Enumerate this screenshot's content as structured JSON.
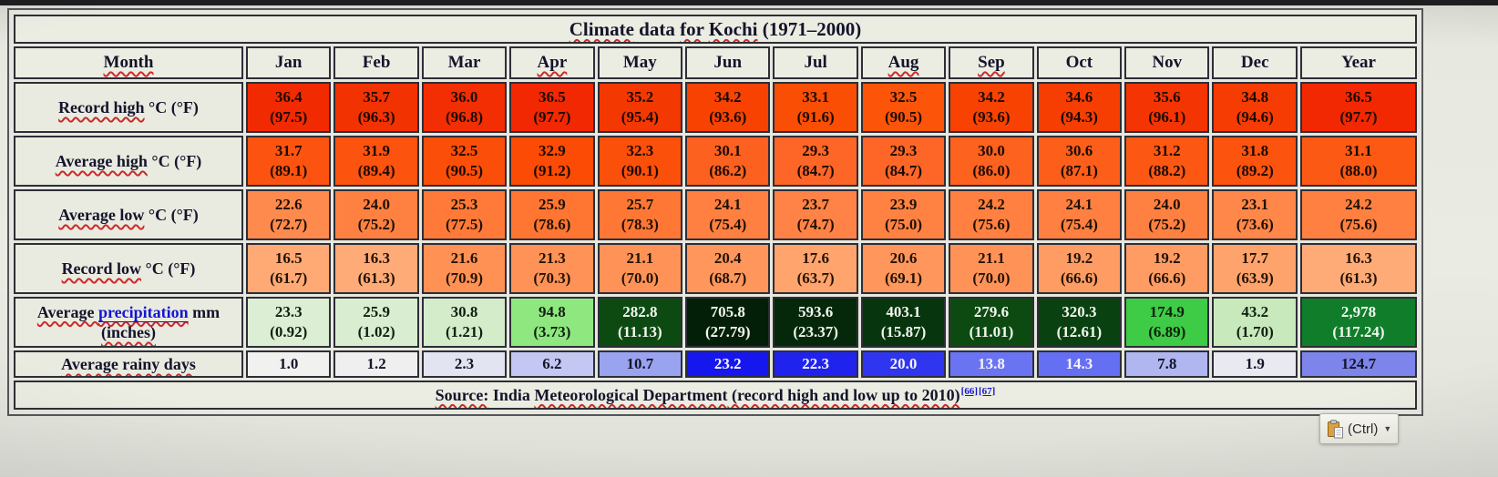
{
  "title_parts": [
    {
      "text": "Climate",
      "squiggle": true
    },
    {
      "text": " data "
    },
    {
      "text": "for",
      "squiggle": true
    },
    {
      "text": " "
    },
    {
      "text": "Kochi",
      "squiggle": true
    },
    {
      "text": " (1971–2000)"
    }
  ],
  "columns": [
    {
      "text": "Month",
      "squiggle": true
    },
    {
      "text": "Jan"
    },
    {
      "text": "Feb"
    },
    {
      "text": "Mar"
    },
    {
      "text": "Apr",
      "squiggle": true
    },
    {
      "text": "May"
    },
    {
      "text": "Jun"
    },
    {
      "text": "Jul"
    },
    {
      "text": "Aug",
      "squiggle": true
    },
    {
      "text": "Sep",
      "squiggle": true
    },
    {
      "text": "Oct"
    },
    {
      "text": "Nov"
    },
    {
      "text": "Dec"
    },
    {
      "text": "Year"
    }
  ],
  "rows": [
    {
      "name": "record-high",
      "tall": true,
      "label_parts": [
        {
          "text": "Record high",
          "squiggle": true
        },
        {
          "text": " °C (°F)"
        }
      ],
      "cells": [
        {
          "l1": "36.4",
          "l2": "(97.5)",
          "bg": "#f12a02",
          "fg": "#1c0a02"
        },
        {
          "l1": "35.7",
          "l2": "(96.3)",
          "bg": "#f33202",
          "fg": "#1c0a02"
        },
        {
          "l1": "36.0",
          "l2": "(96.8)",
          "bg": "#f22e02",
          "fg": "#1c0a02"
        },
        {
          "l1": "36.5",
          "l2": "(97.7)",
          "bg": "#f12802",
          "fg": "#1c0a02"
        },
        {
          "l1": "35.2",
          "l2": "(95.4)",
          "bg": "#f43802",
          "fg": "#1c0a02"
        },
        {
          "l1": "34.2",
          "l2": "(93.6)",
          "bg": "#f74202",
          "fg": "#1c0a02"
        },
        {
          "l1": "33.1",
          "l2": "(91.6)",
          "bg": "#fa4e04",
          "fg": "#1c0a02"
        },
        {
          "l1": "32.5",
          "l2": "(90.5)",
          "bg": "#fc5408",
          "fg": "#1c0a02"
        },
        {
          "l1": "34.2",
          "l2": "(93.6)",
          "bg": "#f74202",
          "fg": "#1c0a02"
        },
        {
          "l1": "34.6",
          "l2": "(94.3)",
          "bg": "#f63e02",
          "fg": "#1c0a02"
        },
        {
          "l1": "35.6",
          "l2": "(96.1)",
          "bg": "#f43402",
          "fg": "#1c0a02"
        },
        {
          "l1": "34.8",
          "l2": "(94.6)",
          "bg": "#f63c02",
          "fg": "#1c0a02"
        },
        {
          "l1": "36.5",
          "l2": "(97.7)",
          "bg": "#f12802",
          "fg": "#1c0a02"
        }
      ]
    },
    {
      "name": "average-high",
      "tall": true,
      "label_parts": [
        {
          "text": "Average high",
          "squiggle": true
        },
        {
          "text": " °C (°F)"
        }
      ],
      "cells": [
        {
          "l1": "31.7",
          "l2": "(89.1)",
          "bg": "#fc5410",
          "fg": "#1c0a02"
        },
        {
          "l1": "31.9",
          "l2": "(89.4)",
          "bg": "#fc530f",
          "fg": "#1c0a02"
        },
        {
          "l1": "32.5",
          "l2": "(90.5)",
          "bg": "#fb4e08",
          "fg": "#1c0a02"
        },
        {
          "l1": "32.9",
          "l2": "(91.2)",
          "bg": "#fb4b04",
          "fg": "#1c0a02"
        },
        {
          "l1": "32.3",
          "l2": "(90.1)",
          "bg": "#fb500a",
          "fg": "#1c0a02"
        },
        {
          "l1": "30.1",
          "l2": "(86.2)",
          "bg": "#fd6120",
          "fg": "#1c0a02"
        },
        {
          "l1": "29.3",
          "l2": "(84.7)",
          "bg": "#fe6628",
          "fg": "#1c0a02"
        },
        {
          "l1": "29.3",
          "l2": "(84.7)",
          "bg": "#fe6628",
          "fg": "#1c0a02"
        },
        {
          "l1": "30.0",
          "l2": "(86.0)",
          "bg": "#fd621f",
          "fg": "#1c0a02"
        },
        {
          "l1": "30.6",
          "l2": "(87.1)",
          "bg": "#fd5e1a",
          "fg": "#1c0a02"
        },
        {
          "l1": "31.2",
          "l2": "(88.2)",
          "bg": "#fc5814",
          "fg": "#1c0a02"
        },
        {
          "l1": "31.8",
          "l2": "(89.2)",
          "bg": "#fc530e",
          "fg": "#1c0a02"
        },
        {
          "l1": "31.1",
          "l2": "(88.0)",
          "bg": "#fc5915",
          "fg": "#1c0a02"
        }
      ]
    },
    {
      "name": "average-low",
      "tall": true,
      "label_parts": [
        {
          "text": "Average low",
          "squiggle": true
        },
        {
          "text": " °C (°F)"
        }
      ],
      "cells": [
        {
          "l1": "22.6",
          "l2": "(72.7)",
          "bg": "#ff8a4e",
          "fg": "#201002"
        },
        {
          "l1": "24.0",
          "l2": "(75.2)",
          "bg": "#ff8142",
          "fg": "#201002"
        },
        {
          "l1": "25.3",
          "l2": "(77.5)",
          "bg": "#ff7a38",
          "fg": "#201002"
        },
        {
          "l1": "25.9",
          "l2": "(78.6)",
          "bg": "#ff7632",
          "fg": "#201002"
        },
        {
          "l1": "25.7",
          "l2": "(78.3)",
          "bg": "#ff7734",
          "fg": "#201002"
        },
        {
          "l1": "24.1",
          "l2": "(75.4)",
          "bg": "#ff8041",
          "fg": "#201002"
        },
        {
          "l1": "23.7",
          "l2": "(74.7)",
          "bg": "#ff8346",
          "fg": "#201002"
        },
        {
          "l1": "23.9",
          "l2": "(75.0)",
          "bg": "#ff8243",
          "fg": "#201002"
        },
        {
          "l1": "24.2",
          "l2": "(75.6)",
          "bg": "#ff8040",
          "fg": "#201002"
        },
        {
          "l1": "24.1",
          "l2": "(75.4)",
          "bg": "#ff8041",
          "fg": "#201002"
        },
        {
          "l1": "24.0",
          "l2": "(75.2)",
          "bg": "#ff8142",
          "fg": "#201002"
        },
        {
          "l1": "23.1",
          "l2": "(73.6)",
          "bg": "#ff874a",
          "fg": "#201002"
        },
        {
          "l1": "24.2",
          "l2": "(75.6)",
          "bg": "#ff8040",
          "fg": "#201002"
        }
      ]
    },
    {
      "name": "record-low",
      "tall": true,
      "label_parts": [
        {
          "text": "Record low",
          "squiggle": true
        },
        {
          "text": " °C (°F)"
        }
      ],
      "cells": [
        {
          "l1": "16.5",
          "l2": "(61.7)",
          "bg": "#ffaa75",
          "fg": "#241204"
        },
        {
          "l1": "16.3",
          "l2": "(61.3)",
          "bg": "#ffab77",
          "fg": "#241204"
        },
        {
          "l1": "21.6",
          "l2": "(70.9)",
          "bg": "#ff9154",
          "fg": "#241204"
        },
        {
          "l1": "21.3",
          "l2": "(70.3)",
          "bg": "#ff9256",
          "fg": "#241204"
        },
        {
          "l1": "21.1",
          "l2": "(70.0)",
          "bg": "#ff9357",
          "fg": "#241204"
        },
        {
          "l1": "20.4",
          "l2": "(68.7)",
          "bg": "#ff975d",
          "fg": "#241204"
        },
        {
          "l1": "17.6",
          "l2": "(63.7)",
          "bg": "#ffa46d",
          "fg": "#241204"
        },
        {
          "l1": "20.6",
          "l2": "(69.1)",
          "bg": "#ff965b",
          "fg": "#241204"
        },
        {
          "l1": "21.1",
          "l2": "(70.0)",
          "bg": "#ff9357",
          "fg": "#241204"
        },
        {
          "l1": "19.2",
          "l2": "(66.6)",
          "bg": "#ff9c64",
          "fg": "#241204"
        },
        {
          "l1": "19.2",
          "l2": "(66.6)",
          "bg": "#ff9c64",
          "fg": "#241204"
        },
        {
          "l1": "17.7",
          "l2": "(63.9)",
          "bg": "#ffa36c",
          "fg": "#241204"
        },
        {
          "l1": "16.3",
          "l2": "(61.3)",
          "bg": "#ffab77",
          "fg": "#241204"
        }
      ]
    },
    {
      "name": "precipitation",
      "tall": true,
      "label_parts": [
        {
          "text": "Average ",
          "squiggle": true
        },
        {
          "text": "precipitation",
          "squiggle": true,
          "link": true
        },
        {
          "text": " mm"
        }
      ],
      "label_line2": {
        "text": "(inches)",
        "squiggle": true
      },
      "cells": [
        {
          "l1": "23.3",
          "l2": "(0.92)",
          "bg": "#dcefd4",
          "fg": "#102010"
        },
        {
          "l1": "25.9",
          "l2": "(1.02)",
          "bg": "#d9eed0",
          "fg": "#102010"
        },
        {
          "l1": "30.8",
          "l2": "(1.21)",
          "bg": "#d5eccb",
          "fg": "#102010"
        },
        {
          "l1": "94.8",
          "l2": "(3.73)",
          "bg": "#8fe87f",
          "fg": "#102010"
        },
        {
          "l1": "282.8",
          "l2": "(11.13)",
          "bg": "#0d4a12",
          "fg": "#f2f6ee"
        },
        {
          "l1": "705.8",
          "l2": "(27.79)",
          "bg": "#041f07",
          "fg": "#f2f6ee"
        },
        {
          "l1": "593.6",
          "l2": "(23.37)",
          "bg": "#05280a",
          "fg": "#f2f6ee"
        },
        {
          "l1": "403.1",
          "l2": "(15.87)",
          "bg": "#07350d",
          "fg": "#f2f6ee"
        },
        {
          "l1": "279.6",
          "l2": "(11.01)",
          "bg": "#0d4a12",
          "fg": "#f2f6ee"
        },
        {
          "l1": "320.3",
          "l2": "(12.61)",
          "bg": "#0a4110",
          "fg": "#f2f6ee"
        },
        {
          "l1": "174.9",
          "l2": "(6.89)",
          "bg": "#3ecb45",
          "fg": "#102010"
        },
        {
          "l1": "43.2",
          "l2": "(1.70)",
          "bg": "#c8e9bc",
          "fg": "#102010"
        },
        {
          "l1": "2,978",
          "l2": "(117.24)",
          "bg": "#0f7d2a",
          "fg": "#f2f6ee"
        }
      ]
    },
    {
      "name": "rainy-days",
      "tall": false,
      "label_parts": [
        {
          "text": "Average rainy days",
          "squiggle": true
        }
      ],
      "cells": [
        {
          "l1": "1.0",
          "bg": "#f1f1ef",
          "fg": "#14142a"
        },
        {
          "l1": "1.2",
          "bg": "#efeff0",
          "fg": "#14142a"
        },
        {
          "l1": "2.3",
          "bg": "#e3e4f2",
          "fg": "#14142a"
        },
        {
          "l1": "6.2",
          "bg": "#c3c7f1",
          "fg": "#14142a"
        },
        {
          "l1": "10.7",
          "bg": "#9aa3ef",
          "fg": "#14142a"
        },
        {
          "l1": "23.2",
          "bg": "#1617ee",
          "fg": "#f4f4fa"
        },
        {
          "l1": "22.3",
          "bg": "#2023ee",
          "fg": "#f4f4fa"
        },
        {
          "l1": "20.0",
          "bg": "#3036ef",
          "fg": "#f4f4fa"
        },
        {
          "l1": "13.8",
          "bg": "#6a74f3",
          "fg": "#f4f4fa"
        },
        {
          "l1": "14.3",
          "bg": "#656ff3",
          "fg": "#f4f4fa"
        },
        {
          "l1": "7.8",
          "bg": "#b0b6f0",
          "fg": "#14142a"
        },
        {
          "l1": "1.9",
          "bg": "#e9e9f2",
          "fg": "#14142a"
        },
        {
          "l1": "124.7",
          "bg": "#7d84ea",
          "fg": "#14142a"
        }
      ]
    }
  ],
  "source": {
    "parts": [
      {
        "text": "Source:",
        "squiggle": true
      },
      {
        "text": " India "
      },
      {
        "text": "Meteorological Department",
        "squiggle": true
      },
      {
        "text": " (record high and low up to 2010)",
        "squiggle": true
      }
    ],
    "refs": [
      {
        "text": "[66]"
      },
      {
        "text": "[67]"
      }
    ]
  },
  "paste_button": {
    "label": "(Ctrl)"
  }
}
